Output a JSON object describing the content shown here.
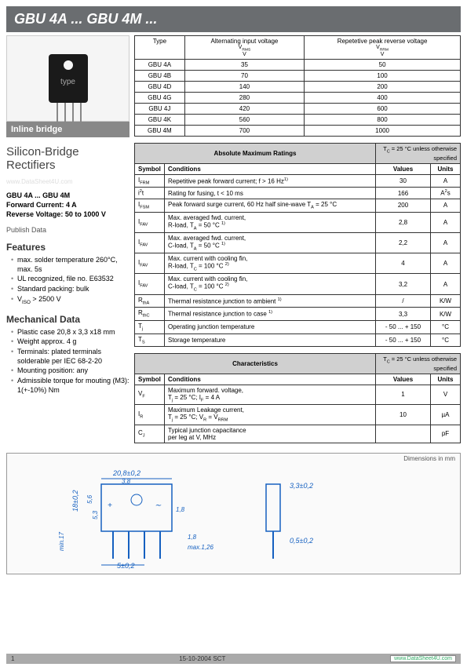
{
  "header": {
    "title": "GBU 4A ... GBU 4M ..."
  },
  "imageBox": {
    "subtitle": "Inline bridge"
  },
  "leftCol": {
    "mainHeading": "Silicon-Bridge Rectifiers",
    "watermark": "www.DataSheet4U.com",
    "partLine": "GBU 4A ... GBU 4M",
    "fwdCurrent": "Forward Current: 4 A",
    "revVolt": "Reverse Voltage: 50 to 1000 V",
    "publish": "Publish Data",
    "featHead": "Features",
    "features": [
      "max. solder temperature 260°C, max. 5s",
      "UL recognized, file no. E63532",
      "Standard packing: bulk",
      "V<sub>ISO</sub> > 2500 V"
    ],
    "mechHead": "Mechanical Data",
    "mechanical": [
      "Plastic case 20,8 x 3,3 x18 mm",
      "Weight approx. 4 g",
      "Terminals: plated terminals solderable per IEC 68-2-20",
      "Mounting position: any",
      "Admissible torque for mouting (M3): 1(+-10%) Nm"
    ]
  },
  "typesTable": {
    "headers": {
      "c1": "Type",
      "c2": "Alternating input voltage",
      "c2s": "V<sub>RMS</sub>",
      "c2u": "V",
      "c3": "Repetetive peak reverse voltage",
      "c3s": "V<sub>RRM</sub>",
      "c3u": "V"
    },
    "rows": [
      [
        "GBU 4A",
        "35",
        "50"
      ],
      [
        "GBU 4B",
        "70",
        "100"
      ],
      [
        "GBU 4D",
        "140",
        "200"
      ],
      [
        "GBU 4G",
        "280",
        "400"
      ],
      [
        "GBU 4J",
        "420",
        "600"
      ],
      [
        "GBU 4K",
        "560",
        "800"
      ],
      [
        "GBU 4M",
        "700",
        "1000"
      ]
    ]
  },
  "amrTable": {
    "title": "Absolute Maximum Ratings",
    "note": "T<sub>C</sub> = 25 °C unless otherwise specified",
    "cols": [
      "Symbol",
      "Conditions",
      "Values",
      "Units"
    ],
    "rows": [
      [
        "I<sub>FRM</sub>",
        "Repetitive peak forward current; f > 16 Hz<sup>1)</sup>",
        "30",
        "A"
      ],
      [
        "i<sup>2</sup>t",
        "Rating for fusing, t < 10 ms",
        "166",
        "A<sup>2</sup>s"
      ],
      [
        "I<sub>FSM</sub>",
        "Peak forward surge current, 60 Hz half sine-wave T<sub>A</sub> = 25 °C",
        "200",
        "A"
      ],
      [
        "I<sub>FAV</sub>",
        "Max. averaged fwd. current,<br>R-load, T<sub>A</sub> = 50 °C <sup>1)</sup>",
        "2,8",
        "A"
      ],
      [
        "I<sub>FAV</sub>",
        "Max. averaged fwd. current,<br>C-load, T<sub>A</sub> = 50 °C <sup>1)</sup>",
        "2,2",
        "A"
      ],
      [
        "I<sub>FAV</sub>",
        "Max. current with cooling fin,<br>R-load, T<sub>C</sub> = 100 °C <sup>2)</sup>",
        "4",
        "A"
      ],
      [
        "I<sub>FAV</sub>",
        "Max. current with cooling fin,<br>C-load, T<sub>C</sub> = 100 °C <sup>2)</sup>",
        "3,2",
        "A"
      ],
      [
        "R<sub>thA</sub>",
        "Thermal resistance junction to ambient <sup>1)</sup>",
        "/",
        "K/W"
      ],
      [
        "R<sub>thC</sub>",
        "Thermal resistance junction to case <sup>1)</sup>",
        "3,3",
        "K/W"
      ],
      [
        "T<sub>j</sub>",
        "Operating junction temperature",
        "- 50 ... + 150",
        "°C"
      ],
      [
        "T<sub>S</sub>",
        "Storage temperature",
        "- 50 ... + 150",
        "°C"
      ]
    ]
  },
  "charTable": {
    "title": "Characteristics",
    "note": "T<sub>C</sub> = 25 °C unless otherwise specified",
    "cols": [
      "Symbol",
      "Conditions",
      "Values",
      "Units"
    ],
    "rows": [
      [
        "V<sub>F</sub>",
        "Maximum forward. voltage,<br>T<sub>j</sub> = 25 °C; I<sub>F</sub> = 4 A",
        "1",
        "V"
      ],
      [
        "I<sub>R</sub>",
        "Maximum Leakage current,<br>T<sub>j</sub> = 25 °C; V<sub>R</sub> = V<sub>RRM</sub>",
        "10",
        "µA"
      ],
      [
        "C<sub>J</sub>",
        "Typical junction capacitance<br>per leg at V, MHz",
        "",
        "pF"
      ]
    ]
  },
  "dimensions": {
    "label": "Dimensions in mm",
    "values": [
      "20,8±0,2",
      "3,8",
      "18±0,2",
      "5,6",
      "5,3",
      "1,8",
      "min.17",
      "5±0,2",
      "1,8",
      "max.1,26",
      "3,3±0,2",
      "0,5±0,2"
    ]
  },
  "footer": {
    "page": "1",
    "date": "15-10-2004  SCT",
    "site": "www.DataSheet4U.com"
  },
  "colors": {
    "barBg": "#6a6d70",
    "subBg": "#888888",
    "tblHdr": "#d0d0d0",
    "border": "#333333"
  }
}
